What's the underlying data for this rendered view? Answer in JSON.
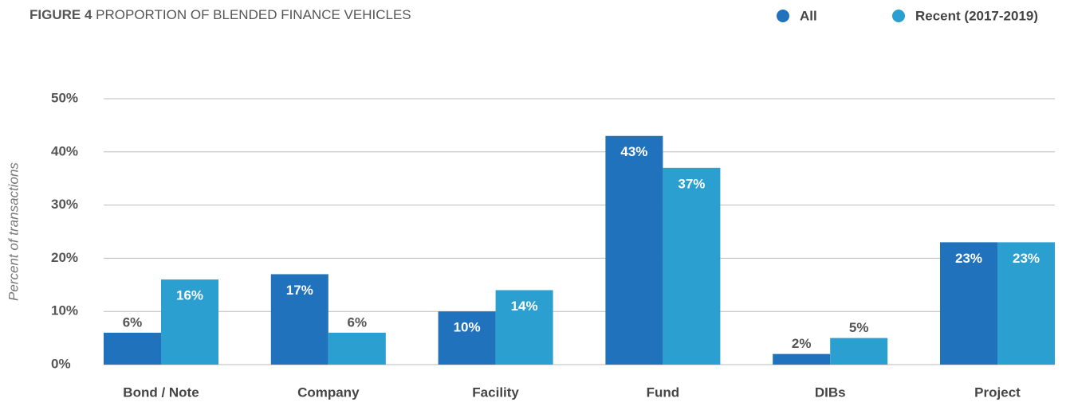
{
  "chart_data": {
    "type": "bar",
    "figure_label": "FIGURE 4",
    "title": "PROPORTION OF BLENDED FINANCE VEHICLES",
    "y_label": "Percent of transactions",
    "categories": [
      "Bond / Note",
      "Company",
      "Facility",
      "Fund",
      "DIBs",
      "Project"
    ],
    "series": [
      {
        "name": "All",
        "color": "#1f72bb",
        "values": [
          6,
          17,
          10,
          43,
          2,
          23
        ],
        "value_labels": [
          "6%",
          "17%",
          "10%",
          "43%",
          "2%",
          "23%"
        ]
      },
      {
        "name": "Recent (2017-2019)",
        "color": "#2a9fd0",
        "values": [
          16,
          6,
          14,
          37,
          5,
          23
        ],
        "value_labels": [
          "16%",
          "6%",
          "14%",
          "37%",
          "5%",
          "23%"
        ]
      }
    ],
    "ylim": [
      0,
      50
    ],
    "yticks": [
      {
        "value": 0,
        "label": "0%"
      },
      {
        "value": 10,
        "label": "10%"
      },
      {
        "value": 20,
        "label": "20%"
      },
      {
        "value": 30,
        "label": "30%"
      },
      {
        "value": 40,
        "label": "40%"
      },
      {
        "value": 50,
        "label": "50%"
      }
    ],
    "grid": true,
    "legend": "top-right"
  }
}
